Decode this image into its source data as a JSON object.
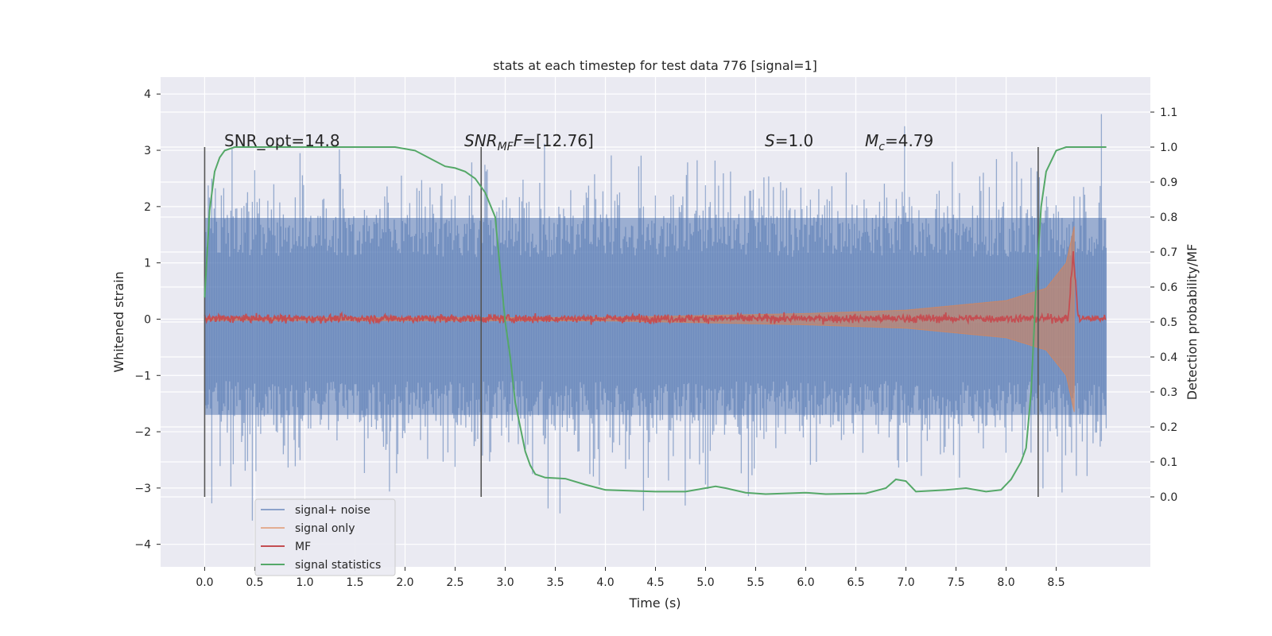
{
  "chart_data": {
    "type": "line",
    "title": "stats at each timestep for test data 776 [signal=1]",
    "xlabel": "Time (s)",
    "ylabel": "Whitened strain",
    "ylabel_right": "Detection probability/MF",
    "xlim": [
      -0.44,
      9.44
    ],
    "ylim": [
      -4.4,
      4.3
    ],
    "ylim_right": [
      -0.2,
      1.2
    ],
    "x_ticks": [
      "0.0",
      "0.5",
      "1.0",
      "1.5",
      "2.0",
      "2.5",
      "3.0",
      "3.5",
      "4.0",
      "4.5",
      "5.0",
      "5.5",
      "6.0",
      "6.5",
      "7.0",
      "7.5",
      "8.0",
      "8.5"
    ],
    "y_ticks": [
      "4",
      "3",
      "2",
      "1",
      "0",
      "−1",
      "−2",
      "−3",
      "−4"
    ],
    "y_ticks_right": [
      "1.1",
      "1.0",
      "0.9",
      "0.8",
      "0.7",
      "0.6",
      "0.5",
      "0.4",
      "0.3",
      "0.2",
      "0.1",
      "0.0"
    ],
    "grid": true,
    "legend_position": "lower-left",
    "colors": {
      "background": "#eaeaf2",
      "grid": "#ffffff",
      "signal_noise": "#4c72b0",
      "signal_only": "#dd8452",
      "mf": "#c44e52",
      "signal_statistics": "#55a868",
      "vertical_marker": "#555555"
    },
    "annotations": {
      "snr_opt": "SNR_opt=14.8",
      "snr_mf_sym": "SNR",
      "snr_mf_sub": "MF",
      "snr_mf_val": "=[12.76]",
      "s_sym": "S",
      "s_val": "=1.0",
      "mc_sym": "M",
      "mc_sub": "c",
      "mc_val": "=4.79"
    },
    "vertical_markers": [
      0.0,
      2.76,
      8.32
    ],
    "series": [
      {
        "name": "signal+ noise",
        "axis": "left",
        "x_range": [
          0.0,
          9.0
        ],
        "envelope_upper": 1.8,
        "envelope_lower": -1.7,
        "max": 3.9,
        "min": -4.0
      },
      {
        "name": "signal only",
        "axis": "left",
        "x_range": [
          0.0,
          8.68
        ],
        "amplitude_points": [
          [
            0.0,
            0.02
          ],
          [
            4.0,
            0.03
          ],
          [
            6.0,
            0.1
          ],
          [
            7.0,
            0.16
          ],
          [
            8.0,
            0.33
          ],
          [
            8.4,
            0.55
          ],
          [
            8.6,
            1.0
          ],
          [
            8.68,
            1.65
          ]
        ]
      },
      {
        "name": "MF",
        "axis": "right",
        "x_range": [
          0.0,
          9.0
        ],
        "baseline": 0.51,
        "peak_x": 8.67,
        "peak_y": 0.7
      },
      {
        "name": "signal statistics",
        "axis": "right",
        "x": [
          0.0,
          0.05,
          0.1,
          0.15,
          0.2,
          0.3,
          0.5,
          1.0,
          1.5,
          1.9,
          2.1,
          2.3,
          2.4,
          2.5,
          2.6,
          2.7,
          2.8,
          2.9,
          3.0,
          3.05,
          3.1,
          3.2,
          3.25,
          3.3,
          3.4,
          3.6,
          3.8,
          4.0,
          4.5,
          4.8,
          5.0,
          5.1,
          5.2,
          5.4,
          5.6,
          6.0,
          6.2,
          6.6,
          6.8,
          6.9,
          7.0,
          7.1,
          7.4,
          7.6,
          7.8,
          7.95,
          8.05,
          8.15,
          8.2,
          8.25,
          8.3,
          8.35,
          8.4,
          8.5,
          8.6,
          8.8,
          9.0
        ],
        "y": [
          0.57,
          0.82,
          0.93,
          0.97,
          0.99,
          1.0,
          1.0,
          1.0,
          1.0,
          1.0,
          0.99,
          0.96,
          0.945,
          0.94,
          0.93,
          0.91,
          0.87,
          0.8,
          0.5,
          0.4,
          0.27,
          0.13,
          0.09,
          0.065,
          0.055,
          0.052,
          0.035,
          0.02,
          0.015,
          0.015,
          0.025,
          0.03,
          0.025,
          0.012,
          0.008,
          0.012,
          0.008,
          0.01,
          0.025,
          0.05,
          0.045,
          0.015,
          0.02,
          0.025,
          0.015,
          0.02,
          0.05,
          0.1,
          0.14,
          0.3,
          0.6,
          0.83,
          0.93,
          0.99,
          1.0,
          1.0,
          1.0
        ]
      }
    ]
  }
}
